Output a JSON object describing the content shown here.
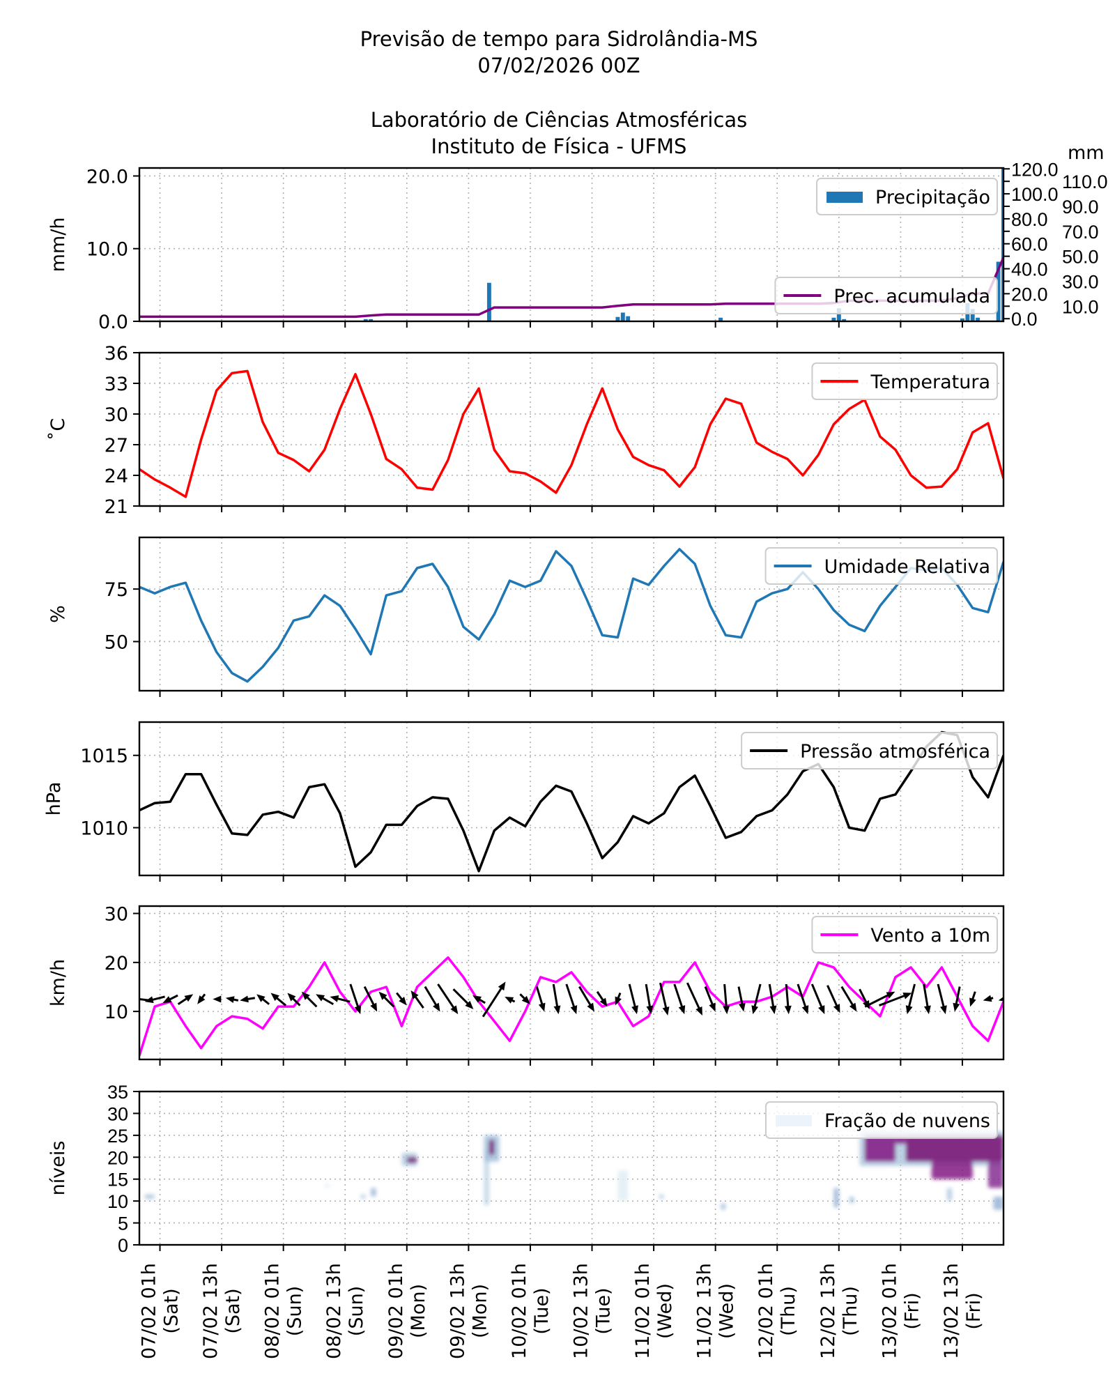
{
  "header": {
    "title_line1": "Previsão de tempo para Sidrolândia-MS",
    "title_line2": "07/02/2026 00Z",
    "title_line3": "Laboratório de Ciências Atmosféricas",
    "title_line4": "Instituto de Física - UFMS"
  },
  "x_axis": {
    "ticks": [
      {
        "time": "07/02 01h",
        "line1": "07/02 01h",
        "line2": "(Sat)"
      },
      {
        "time": "07/02 13h",
        "line1": "07/02 13h",
        "line2": "(Sat)"
      },
      {
        "time": "08/02 01h",
        "line1": "08/02 01h",
        "line2": "(Sun)"
      },
      {
        "time": "08/02 13h",
        "line1": "08/02 13h",
        "line2": "(Sun)"
      },
      {
        "time": "09/02 01h",
        "line1": "09/02 01h",
        "line2": "(Mon)"
      },
      {
        "time": "09/02 13h",
        "line1": "09/02 13h",
        "line2": "(Mon)"
      },
      {
        "time": "10/02 01h",
        "line1": "10/02 01h",
        "line2": "(Tue)"
      },
      {
        "time": "10/02 13h",
        "line1": "10/02 13h",
        "line2": "(Tue)"
      },
      {
        "time": "11/02 01h",
        "line1": "11/02 01h",
        "line2": "(Wed)"
      },
      {
        "time": "11/02 13h",
        "line1": "11/02 13h",
        "line2": "(Wed)"
      },
      {
        "time": "12/02 01h",
        "line1": "12/02 01h",
        "line2": "(Thu)"
      },
      {
        "time": "12/02 13h",
        "line1": "12/02 13h",
        "line2": "(Thu)"
      },
      {
        "time": "13/02 01h",
        "line1": "13/02 01h",
        "line2": "(Fri)"
      },
      {
        "time": "13/02 13h",
        "line1": "13/02 13h",
        "line2": "(Fri)"
      }
    ],
    "range": [
      "06/02 21h",
      "13/02 21h"
    ]
  },
  "times": [
    "06/02 21h",
    "07/02 00h",
    "07/02 03h",
    "07/02 06h",
    "07/02 09h",
    "07/02 12h",
    "07/02 15h",
    "07/02 18h",
    "07/02 21h",
    "08/02 00h",
    "08/02 03h",
    "08/02 06h",
    "08/02 09h",
    "08/02 12h",
    "08/02 15h",
    "08/02 18h",
    "08/02 21h",
    "09/02 00h",
    "09/02 03h",
    "09/02 06h",
    "09/02 09h",
    "09/02 12h",
    "09/02 15h",
    "09/02 18h",
    "09/02 21h",
    "10/02 00h",
    "10/02 03h",
    "10/02 06h",
    "10/02 09h",
    "10/02 12h",
    "10/02 15h",
    "10/02 18h",
    "10/02 21h",
    "11/02 00h",
    "11/02 03h",
    "11/02 06h",
    "11/02 09h",
    "11/02 12h",
    "11/02 15h",
    "11/02 18h",
    "11/02 21h",
    "12/02 00h",
    "12/02 03h",
    "12/02 06h",
    "12/02 09h",
    "12/02 12h",
    "12/02 15h",
    "12/02 18h",
    "12/02 21h",
    "13/02 00h",
    "13/02 03h",
    "13/02 06h",
    "13/02 09h",
    "13/02 12h",
    "13/02 15h",
    "13/02 18h",
    "13/02 21h"
  ],
  "chart_data": [
    {
      "type": "bar",
      "panel": "precipitation",
      "ylabel": "mm/h",
      "ylabel_right": "mm",
      "ylim": [
        0,
        21.1
      ],
      "ylim_right": [
        -2.1,
        120.7
      ],
      "yticks": [
        {
          "v": 0,
          "label": "0.0"
        },
        {
          "v": 10,
          "label": "10.0"
        },
        {
          "v": 20,
          "label": "20.0"
        }
      ],
      "yticks_right": [
        {
          "v": 0,
          "label": "0.0"
        },
        {
          "v": 10,
          "label": "10.0"
        },
        {
          "v": 20,
          "label": "20.0"
        },
        {
          "v": 30,
          "label": "30.0"
        },
        {
          "v": 40,
          "label": "40.0"
        },
        {
          "v": 50,
          "label": "50.0"
        },
        {
          "v": 60,
          "label": "60.0"
        },
        {
          "v": 70,
          "label": "70.0"
        },
        {
          "v": 80,
          "label": "80.0"
        },
        {
          "v": 90,
          "label": "90.0"
        },
        {
          "v": 100,
          "label": "100.0"
        },
        {
          "v": 110,
          "label": "110.0"
        },
        {
          "v": 120,
          "label": "120.0"
        }
      ],
      "grid": true,
      "legend_placement": "top-right",
      "bars": {
        "name": "Precipitação",
        "color": "#1f77b4",
        "points": [
          {
            "time": "08/02 17h",
            "value": 0.3
          },
          {
            "time": "08/02 18h",
            "value": 0.3
          },
          {
            "time": "09/02 17h",
            "value": 5.3
          },
          {
            "time": "10/02 18h",
            "value": 0.6
          },
          {
            "time": "10/02 19h",
            "value": 1.2
          },
          {
            "time": "10/02 20h",
            "value": 0.7
          },
          {
            "time": "11/02 14h",
            "value": 0.5
          },
          {
            "time": "12/02 12h",
            "value": 0.5
          },
          {
            "time": "12/02 13h",
            "value": 1.8
          },
          {
            "time": "12/02 14h",
            "value": 0.3
          },
          {
            "time": "13/02 13h",
            "value": 0.4
          },
          {
            "time": "13/02 14h",
            "value": 2.5
          },
          {
            "time": "13/02 15h",
            "value": 1.7
          },
          {
            "time": "13/02 16h",
            "value": 0.5
          },
          {
            "time": "13/02 20h",
            "value": 8.2
          },
          {
            "time": "13/02 21h",
            "value": 21.0
          }
        ]
      },
      "cumulative": {
        "name": "Prec. acumulada",
        "color": "#800080",
        "axis": "right",
        "values": [
          1.6,
          1.6,
          1.6,
          1.6,
          1.6,
          1.6,
          1.6,
          1.6,
          1.6,
          1.6,
          1.6,
          1.6,
          1.6,
          1.6,
          1.6,
          2.6,
          3.3,
          3.3,
          3.3,
          3.3,
          3.3,
          3.3,
          3.3,
          9.0,
          9.0,
          9.0,
          9.0,
          9.0,
          9.0,
          9.0,
          9.0,
          10.3,
          11.4,
          11.4,
          11.4,
          11.4,
          11.4,
          11.4,
          12.0,
          12.0,
          12.0,
          12.0,
          12.0,
          12.0,
          12.0,
          12.6,
          14.4,
          14.4,
          14.4,
          14.4,
          14.4,
          14.4,
          14.4,
          16.5,
          20.0,
          20.2,
          49.0
        ]
      }
    },
    {
      "type": "line",
      "panel": "temperature",
      "ylabel": "$^\\circ$C",
      "ylabel_display": "˚C",
      "ylim": [
        21,
        36
      ],
      "yticks": [
        {
          "v": 21,
          "label": "21"
        },
        {
          "v": 24,
          "label": "24"
        },
        {
          "v": 27,
          "label": "27"
        },
        {
          "v": 30,
          "label": "30"
        },
        {
          "v": 33,
          "label": "33"
        },
        {
          "v": 36,
          "label": "36"
        }
      ],
      "grid": true,
      "legend_placement": "top-right",
      "series": [
        {
          "name": "Temperatura",
          "color": "#ff0000",
          "values": [
            24.6,
            23.6,
            22.8,
            21.9,
            27.5,
            32.3,
            34.0,
            34.2,
            29.2,
            26.2,
            25.5,
            24.4,
            26.5,
            30.5,
            33.9,
            30.0,
            25.6,
            24.6,
            22.8,
            22.6,
            25.5,
            30.0,
            32.5,
            26.5,
            24.4,
            24.2,
            23.4,
            22.3,
            25.0,
            29.0,
            32.5,
            28.5,
            25.8,
            25.0,
            24.5,
            22.9,
            24.8,
            29.0,
            31.5,
            31.0,
            27.2,
            26.3,
            25.6,
            24.0,
            26.0,
            29.0,
            30.5,
            31.4,
            27.8,
            26.5,
            24.0,
            22.8,
            22.9,
            24.6,
            28.2,
            29.1,
            23.7
          ]
        }
      ]
    },
    {
      "type": "line",
      "panel": "relative-humidity",
      "ylabel": "%",
      "ylim": [
        26.6,
        99.6
      ],
      "yticks": [
        {
          "v": 50,
          "label": "50"
        },
        {
          "v": 75,
          "label": "75"
        }
      ],
      "grid": true,
      "legend_placement": "top-right",
      "series": [
        {
          "name": "Umidade Relativa",
          "color": "#1f77b4",
          "values": [
            76,
            73,
            76,
            78,
            60,
            45,
            35,
            31,
            38,
            47,
            60,
            62,
            72,
            67,
            56,
            44,
            72,
            74,
            85,
            87,
            76,
            57,
            51,
            63,
            79,
            76,
            79,
            93,
            86,
            70,
            53,
            52,
            80,
            77,
            86,
            94,
            87,
            67,
            53,
            52,
            69,
            73,
            75,
            83,
            75,
            65,
            58,
            55,
            67,
            76,
            85,
            84,
            85,
            77,
            66,
            64,
            88
          ]
        }
      ]
    },
    {
      "type": "line",
      "panel": "pressure",
      "ylabel": "hPa",
      "ylim": [
        1006.7,
        1017.3
      ],
      "yticks": [
        {
          "v": 1010,
          "label": "1010"
        },
        {
          "v": 1015,
          "label": "1015"
        }
      ],
      "grid": true,
      "legend_placement": "top-right",
      "series": [
        {
          "name": "Pressão atmosférica",
          "color": "#000000",
          "values": [
            1011.2,
            1011.7,
            1011.8,
            1013.7,
            1013.7,
            1011.6,
            1009.6,
            1009.5,
            1010.9,
            1011.1,
            1010.7,
            1012.8,
            1013.0,
            1011.0,
            1007.3,
            1008.3,
            1010.2,
            1010.2,
            1011.5,
            1012.1,
            1012.0,
            1009.8,
            1007.0,
            1009.8,
            1010.7,
            1010.1,
            1011.8,
            1012.9,
            1012.5,
            1010.3,
            1007.9,
            1009.0,
            1010.8,
            1010.3,
            1011.0,
            1012.8,
            1013.6,
            1011.5,
            1009.3,
            1009.7,
            1010.8,
            1011.2,
            1012.3,
            1013.9,
            1014.4,
            1012.8,
            1010.0,
            1009.8,
            1012.0,
            1012.3,
            1013.9,
            1015.6,
            1016.6,
            1016.4,
            1013.5,
            1012.1,
            1015.0
          ]
        }
      ]
    },
    {
      "type": "line",
      "panel": "wind",
      "ylabel": "km/h",
      "ylim": [
        0.2,
        31.5
      ],
      "yticks": [
        {
          "v": 10,
          "label": "10"
        },
        {
          "v": 20,
          "label": "20"
        },
        {
          "v": 30,
          "label": "30"
        }
      ],
      "grid": true,
      "legend_placement": "top-right",
      "series": [
        {
          "name": "Vento a 10m",
          "color": "#ff00ff",
          "values": [
            1,
            11,
            12,
            7,
            2.5,
            7,
            9,
            8.5,
            6.5,
            11,
            11,
            15,
            20,
            14,
            10,
            14,
            15,
            7,
            15,
            18,
            21,
            17,
            12,
            8,
            4,
            10,
            17,
            16,
            18,
            14,
            11,
            12,
            7,
            9,
            16,
            16,
            20,
            14,
            11,
            12,
            12,
            13,
            15,
            13,
            20,
            19,
            15,
            12,
            9,
            17,
            19,
            15,
            19,
            13,
            7,
            4,
            12
          ]
        }
      ],
      "wind_vectors": {
        "color": "#000000",
        "u": [
          -9,
          -8,
          -6,
          6,
          -3,
          -3,
          -5,
          -6,
          -5,
          -6,
          -5,
          -6,
          -7,
          -8,
          4,
          5,
          -6,
          4,
          -5,
          6,
          8,
          8,
          -5,
          9,
          -4,
          4,
          3,
          2,
          4,
          6,
          4,
          -2,
          3,
          2,
          3,
          4,
          6,
          4,
          1,
          2,
          -3,
          2,
          1,
          4,
          5,
          5,
          6,
          4,
          12,
          13,
          -3,
          2,
          3,
          -2,
          -2,
          -4,
          -4
        ],
        "v": [
          1,
          -2,
          -3,
          4,
          -4,
          0,
          1,
          -1,
          4,
          5,
          5,
          6,
          4,
          2,
          -12,
          -10,
          6,
          -5,
          7,
          -10,
          -12,
          -8,
          3,
          14,
          2,
          -4,
          -10,
          -12,
          -12,
          -10,
          -6,
          -5,
          -12,
          -12,
          -13,
          -12,
          -13,
          -10,
          -12,
          -10,
          -12,
          -12,
          -12,
          -12,
          -12,
          -11,
          -10,
          -8,
          6,
          5,
          -12,
          -12,
          -12,
          -10,
          -6,
          -1,
          -1
        ]
      }
    },
    {
      "type": "heatmap",
      "panel": "cloud-fraction",
      "ylabel": "níveis",
      "ylim": [
        0,
        35
      ],
      "yticks": [
        {
          "v": 0,
          "label": "0"
        },
        {
          "v": 5,
          "label": "5"
        },
        {
          "v": 10,
          "label": "10"
        },
        {
          "v": 15,
          "label": "15"
        },
        {
          "v": 20,
          "label": "20"
        },
        {
          "v": 25,
          "label": "25"
        },
        {
          "v": 30,
          "label": "30"
        },
        {
          "v": 35,
          "label": "35"
        }
      ],
      "grid": true,
      "legend_placement": "top-right",
      "series": [
        {
          "name": "Fração de nuvens",
          "color": "#edf3fa"
        }
      ],
      "patches": [
        {
          "time": [
            "06/02 22h",
            "06/02 24h"
          ],
          "levels": [
            10.5,
            11.5
          ],
          "fraction": 0.35
        },
        {
          "time": [
            "08/02 16h",
            "08/02 17h"
          ],
          "levels": [
            10.5,
            11.5
          ],
          "fraction": 0.3
        },
        {
          "time": [
            "08/02 18h",
            "08/02 19h"
          ],
          "levels": [
            11,
            13
          ],
          "fraction": 0.4
        },
        {
          "time": [
            "08/02 09h",
            "08/02 10h"
          ],
          "levels": [
            13,
            14
          ],
          "fraction": 0.1
        },
        {
          "time": [
            "09/02 00h",
            "09/02 03h"
          ],
          "levels": [
            18,
            21
          ],
          "fraction": 0.3
        },
        {
          "time": [
            "09/02 01h",
            "09/02 03h"
          ],
          "levels": [
            18.7,
            20
          ],
          "fraction": 0.9
        },
        {
          "time": [
            "09/02 16h",
            "09/02 17h"
          ],
          "levels": [
            9,
            22
          ],
          "fraction": 0.25
        },
        {
          "time": [
            "09/02 16h",
            "09/02 19h"
          ],
          "levels": [
            19,
            25
          ],
          "fraction": 0.35
        },
        {
          "time": [
            "09/02 17h",
            "09/02 18h"
          ],
          "levels": [
            20.5,
            24
          ],
          "fraction": 0.9
        },
        {
          "time": [
            "10/02 18h",
            "10/02 20h"
          ],
          "levels": [
            10,
            17
          ],
          "fraction": 0.12
        },
        {
          "time": [
            "11/02 02h",
            "11/02 03h"
          ],
          "levels": [
            10.5,
            11.5
          ],
          "fraction": 0.3
        },
        {
          "time": [
            "11/02 14h",
            "11/02 15h"
          ],
          "levels": [
            8,
            9.5
          ],
          "fraction": 0.35
        },
        {
          "time": [
            "12/02 12h",
            "12/02 13h"
          ],
          "levels": [
            8.5,
            13
          ],
          "fraction": 0.4
        },
        {
          "time": [
            "12/02 15h",
            "12/02 16h"
          ],
          "levels": [
            9.5,
            11
          ],
          "fraction": 0.35
        },
        {
          "time": [
            "12/02 17h",
            "13/02 21h"
          ],
          "levels": [
            18,
            26
          ],
          "fraction": 0.3
        },
        {
          "time": [
            "12/02 18h",
            "12/02 24h"
          ],
          "levels": [
            19,
            25
          ],
          "fraction": 0.85
        },
        {
          "time": [
            "13/02 00h",
            "13/02 02h"
          ],
          "levels": [
            23,
            25
          ],
          "fraction": 0.85
        },
        {
          "time": [
            "13/02 02h",
            "13/02 21h"
          ],
          "levels": [
            19,
            25
          ],
          "fraction": 0.9
        },
        {
          "time": [
            "13/02 07h",
            "13/02 15h"
          ],
          "levels": [
            15,
            19
          ],
          "fraction": 0.85
        },
        {
          "time": [
            "13/02 18h",
            "13/02 21h"
          ],
          "levels": [
            13,
            19
          ],
          "fraction": 0.8
        },
        {
          "time": [
            "13/02 19h",
            "13/02 21h"
          ],
          "levels": [
            8,
            11
          ],
          "fraction": 0.4
        },
        {
          "time": [
            "13/02 10h",
            "13/02 11h"
          ],
          "levels": [
            10,
            13
          ],
          "fraction": 0.3
        }
      ]
    }
  ]
}
